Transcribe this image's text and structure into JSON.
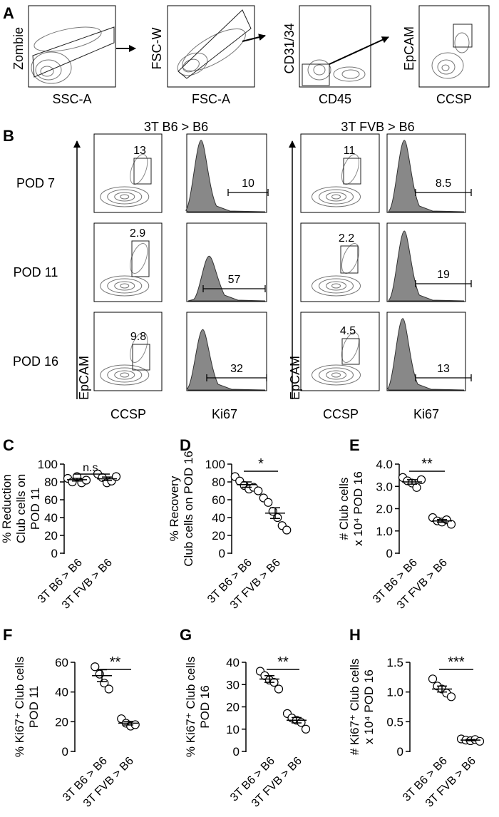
{
  "panel_a": {
    "letter": "A",
    "plots": [
      {
        "ylabel": "Zombie",
        "xlabel": "SSC-A"
      },
      {
        "ylabel": "FSC-W",
        "xlabel": "FSC-A"
      },
      {
        "ylabel": "CD31/34",
        "xlabel": "CD45"
      },
      {
        "ylabel": "EpCAM",
        "xlabel": "CCSP"
      }
    ]
  },
  "panel_b": {
    "letter": "B",
    "rows": [
      "POD 7",
      "POD 11",
      "POD 16"
    ],
    "groups": [
      {
        "title": "3T B6 > B6",
        "ylabel": "EpCAM",
        "xlabels": [
          "CCSP",
          "Ki67"
        ],
        "gate_values": [
          "13",
          "2.9",
          "9.8"
        ],
        "ki67_values": [
          "10",
          "57",
          "32"
        ]
      },
      {
        "title": "3T FVB > B6",
        "ylabel": "EpCAM",
        "xlabels": [
          "CCSP",
          "Ki67"
        ],
        "gate_values": [
          "11",
          "2.2",
          "4.5"
        ],
        "ki67_values": [
          "8.5",
          "19",
          "13"
        ]
      }
    ]
  },
  "chart_data": [
    {
      "panel": "C",
      "type": "scatter",
      "ylabel": "% Reduction Club cells on POD 11",
      "categories": [
        "3T B6 > B6",
        "3T FVB > B6"
      ],
      "ylim": [
        0,
        100
      ],
      "yticks": [
        "0",
        "20",
        "40",
        "60",
        "80",
        "100"
      ],
      "series": [
        {
          "values": [
            [
              84,
              80,
              86,
              79,
              82
            ],
            [
              89,
              85,
              79,
              81,
              86
            ]
          ]
        }
      ],
      "means": [
        82.5,
        83.5
      ],
      "sem": [
        1.5,
        2.0
      ],
      "significance": "n.s."
    },
    {
      "panel": "D",
      "type": "scatter",
      "ylabel": "% Recovery Club cells on POD 16",
      "categories": [
        "3T B6 > B6",
        "3T FVB > B6"
      ],
      "ylim": [
        0,
        100
      ],
      "yticks": [
        "0",
        "20",
        "40",
        "60",
        "80",
        "100"
      ],
      "series": [
        {
          "values": [
            [
              86,
              81,
              76,
              72,
              74,
              70
            ],
            [
              62,
              57,
              47,
              40,
              31,
              26
            ]
          ]
        }
      ],
      "means": [
        77,
        45
      ],
      "sem": [
        3,
        6
      ],
      "significance": "*"
    },
    {
      "panel": "E",
      "type": "scatter",
      "ylabel": "# Club cells x 10⁴ POD 16",
      "categories": [
        "3T B6 > B6",
        "3T FVB > B6"
      ],
      "ylim": [
        0,
        4.0
      ],
      "yticks": [
        "0",
        "1.0",
        "2.0",
        "3.0",
        "4.0"
      ],
      "series": [
        {
          "values": [
            [
              3.4,
              3.25,
              3.15,
              2.95,
              3.3
            ],
            [
              1.6,
              1.45,
              1.4,
              1.5,
              1.3
            ]
          ]
        }
      ],
      "means": [
        3.2,
        1.45
      ],
      "sem": [
        0.1,
        0.06
      ],
      "significance": "**"
    },
    {
      "panel": "F",
      "type": "scatter",
      "ylabel": "% Ki67⁺ Club cells POD 11",
      "categories": [
        "3T B6 > B6",
        "3T FVB > B6"
      ],
      "ylim": [
        0,
        60
      ],
      "yticks": [
        "0",
        "20",
        "40",
        "60"
      ],
      "series": [
        {
          "values": [
            [
              57,
              52,
              46,
              42
            ],
            [
              22,
              19,
              17,
              18
            ]
          ]
        }
      ],
      "means": [
        51,
        19
      ],
      "sem": [
        4,
        1.2
      ],
      "significance": "**"
    },
    {
      "panel": "G",
      "type": "scatter",
      "ylabel": "% Ki67⁺ Club cells POD 16",
      "categories": [
        "3T B6 > B6",
        "3T FVB > B6"
      ],
      "ylim": [
        0,
        40
      ],
      "yticks": [
        "0",
        "10",
        "20",
        "30",
        "40"
      ],
      "series": [
        {
          "values": [
            [
              36,
              34,
              32,
              31,
              28
            ],
            [
              17,
              15,
              14,
              13,
              10
            ]
          ]
        }
      ],
      "means": [
        32.5,
        14
      ],
      "sem": [
        1.5,
        1.2
      ],
      "significance": "**"
    },
    {
      "panel": "H",
      "type": "scatter",
      "ylabel": "# Ki67⁺ Club cells x 10⁴ POD 16",
      "categories": [
        "3T B6 > B6",
        "3T FVB > B6"
      ],
      "ylim": [
        0,
        1.5
      ],
      "yticks": [
        "0",
        "0.5",
        "1.0",
        "1.5"
      ],
      "series": [
        {
          "values": [
            [
              1.22,
              1.1,
              1.05,
              0.98,
              0.92
            ],
            [
              0.21,
              0.19,
              0.18,
              0.2,
              0.17
            ]
          ]
        }
      ],
      "means": [
        1.05,
        0.19
      ],
      "sem": [
        0.05,
        0.01
      ],
      "significance": "***"
    }
  ]
}
